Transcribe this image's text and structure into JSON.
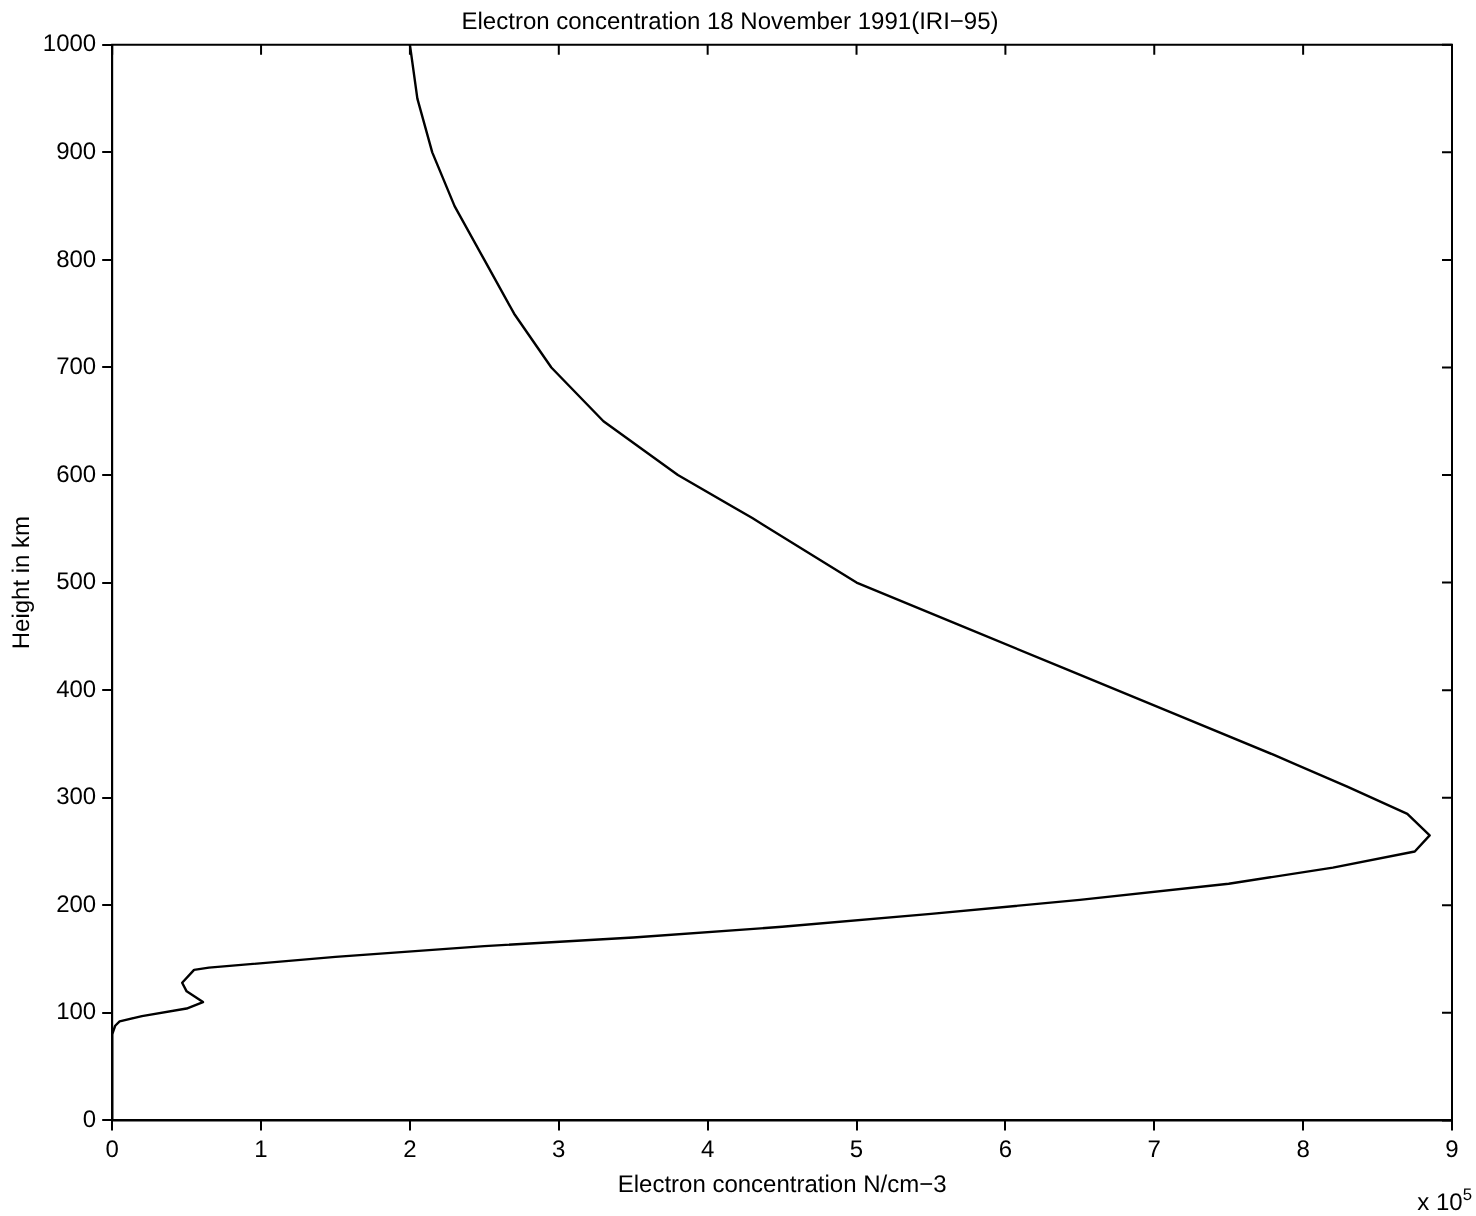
{
  "chart_data": {
    "type": "line",
    "title": "Electron concentration 18 November 1991(IRI−95)",
    "xlabel": "Electron concentration N/cm−3",
    "ylabel": "Height in km",
    "annotations": [
      "x 10$^{5}$"
    ],
    "series": [
      {
        "color": "#000000",
        "x": [
          0,
          0,
          0.02,
          0.05,
          0.2,
          0.5,
          0.61,
          0.5,
          0.47,
          0.55,
          0.65,
          1.5,
          2.5,
          3.5,
          4.5,
          5.5,
          6.5,
          7.5,
          8.2,
          8.75,
          8.85,
          8.7,
          8.3,
          7.8,
          7.1,
          6.4,
          5.7,
          5,
          4.3,
          3.8,
          3.3,
          2.95,
          2.7,
          2.5,
          2.3,
          2.15,
          2.05,
          2
        ],
        "values": [
          0,
          80,
          88,
          92,
          97,
          104,
          110,
          120,
          128,
          140,
          142,
          152,
          162,
          170,
          180,
          192,
          205,
          220,
          235,
          250,
          265,
          285,
          310,
          340,
          380,
          420,
          460,
          500,
          560,
          600,
          650,
          700,
          750,
          800,
          850,
          900,
          950,
          1000
        ]
      }
    ],
    "xlim": [
      0,
      9
    ],
    "xticks": [
      0,
      1,
      2,
      3,
      4,
      5,
      6,
      7,
      8,
      9
    ],
    "ylim": [
      0,
      1000
    ],
    "yticks": [
      0,
      100,
      200,
      300,
      400,
      500,
      600,
      700,
      800,
      900,
      1000
    ],
    "grid": false,
    "legend": false,
    "marker": "none",
    "line_style": "solid"
  }
}
